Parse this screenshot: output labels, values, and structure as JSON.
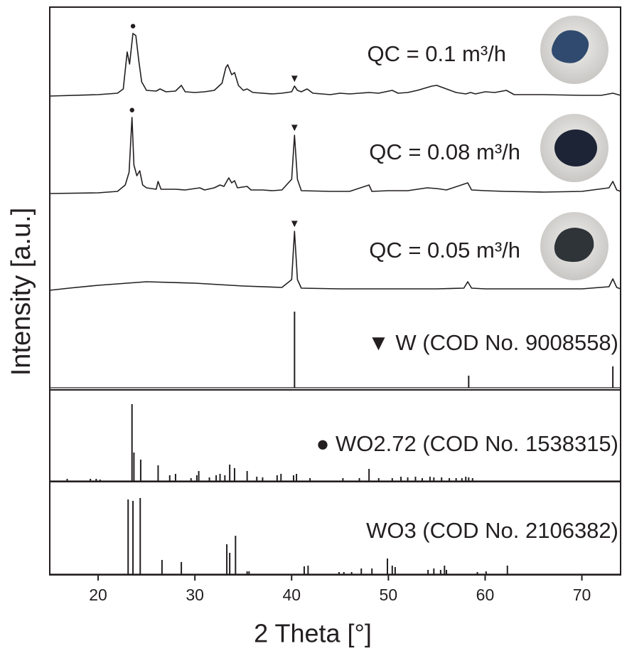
{
  "chart_data": [
    {
      "type": "line",
      "xlabel": "2 Theta [°]",
      "ylabel": "Intensity [a.u.]",
      "xlim": [
        15,
        74
      ],
      "xticks": [
        20,
        30,
        40,
        50,
        60,
        70
      ],
      "ylim": [
        0,
        110
      ],
      "series": [
        {
          "name": "QC = 0.1 m³/h",
          "color": "#231f20",
          "x": [
            15,
            20,
            22,
            22.6,
            23,
            23.25,
            23.6,
            23.9,
            24.2,
            24.5,
            25,
            26,
            26.4,
            27,
            28,
            28.6,
            29,
            30,
            31,
            32,
            32.8,
            33.2,
            33.4,
            33.8,
            34.1,
            34.5,
            35,
            35.4,
            36,
            38,
            39,
            40,
            40.3,
            40.6,
            41,
            41.6,
            42.2,
            44,
            45,
            46,
            48,
            49,
            50.4,
            51,
            52,
            53,
            54.5,
            55,
            56,
            57,
            58,
            58.5,
            59,
            60,
            61,
            62.2,
            63,
            66,
            70,
            72,
            73.2,
            74
          ],
          "values": [
            0,
            2,
            4,
            10,
            62,
            45,
            88,
            85,
            50,
            20,
            8,
            7,
            10,
            6,
            7,
            15,
            6,
            5,
            6,
            8,
            18,
            40,
            44,
            30,
            33,
            15,
            8,
            10,
            5,
            3,
            4,
            6,
            14,
            8,
            6,
            10,
            4,
            2,
            4,
            3,
            5,
            4,
            8,
            4,
            5,
            8,
            14,
            15,
            10,
            5,
            3,
            5,
            3,
            6,
            5,
            8,
            2,
            2,
            1,
            1,
            4,
            1
          ],
          "markers": [
            {
              "x": 23.6,
              "label": "●"
            },
            {
              "x": 40.3,
              "label": "▼"
            }
          ]
        },
        {
          "name": "QC = 0.08 m³/h",
          "color": "#231f20",
          "x": [
            15,
            20,
            22,
            22.8,
            23.2,
            23.5,
            23.7,
            24,
            24.3,
            24.6,
            25,
            26,
            26.2,
            26.5,
            28,
            29,
            30.5,
            31,
            32,
            32.6,
            33,
            33.5,
            33.8,
            34.1,
            34.4,
            35.4,
            35.8,
            37,
            38,
            39,
            40,
            40.3,
            40.6,
            41,
            44,
            46,
            48,
            48.3,
            50,
            52,
            54,
            55,
            56,
            58.2,
            58.6,
            60,
            62,
            66,
            70,
            72.8,
            73.2,
            73.6,
            74
          ],
          "values": [
            0,
            1,
            3,
            12,
            30,
            107,
            40,
            25,
            32,
            12,
            8,
            6,
            17,
            6,
            6,
            5,
            8,
            5,
            8,
            12,
            10,
            22,
            15,
            18,
            8,
            10,
            5,
            5,
            4,
            5,
            20,
            82,
            20,
            4,
            3,
            3,
            12,
            3,
            4,
            4,
            8,
            7,
            5,
            15,
            5,
            4,
            3,
            2,
            3,
            8,
            17,
            5,
            3
          ],
          "markers": [
            {
              "x": 23.5,
              "label": "●"
            },
            {
              "x": 40.3,
              "label": "▼"
            }
          ]
        },
        {
          "name": "QC = 0.05 m³/h",
          "color": "#231f20",
          "x": [
            15,
            17,
            20,
            25,
            30,
            35,
            39,
            40,
            40.3,
            40.6,
            41,
            45,
            50,
            55,
            57.8,
            58.2,
            58.6,
            60,
            70,
            72.8,
            73.2,
            73.6,
            74
          ],
          "values": [
            0,
            3,
            7,
            12,
            10,
            6,
            4,
            15,
            83,
            15,
            3,
            2,
            2,
            2,
            3,
            12,
            3,
            2,
            2,
            5,
            16,
            4,
            2
          ],
          "markers": [
            {
              "x": 40.3,
              "label": "▼"
            }
          ]
        }
      ]
    },
    {
      "type": "stem",
      "xlim": [
        15,
        74
      ],
      "ylim": [
        0,
        110
      ],
      "series": [
        {
          "name": "▼ W (COD No. 9008558)",
          "color": "#231f20",
          "x": [
            40.3,
            58.3,
            73.2
          ],
          "values": [
            107,
            17,
            30
          ]
        }
      ]
    },
    {
      "type": "stem",
      "xlim": [
        15,
        74
      ],
      "ylim": [
        0,
        110
      ],
      "series": [
        {
          "name": "● WO2.72 (COD No. 1538315)",
          "color": "#231f20",
          "x": [
            16.8,
            19.2,
            19.8,
            20.2,
            23.5,
            23.7,
            24.4,
            26.2,
            27.4,
            28,
            29.6,
            30.2,
            30.4,
            31.5,
            32.2,
            32.6,
            33.1,
            33.6,
            34.1,
            35.4,
            36.4,
            37,
            38.5,
            38.9,
            40.2,
            40.5,
            41.9,
            45.3,
            47,
            48,
            49,
            50.4,
            51.3,
            52,
            52.8,
            53.5,
            54.3,
            54.7,
            55.5,
            56.3,
            57,
            57.6,
            58,
            58.3,
            58.7
          ],
          "values": [
            3,
            3,
            3,
            2,
            108,
            40,
            30,
            22,
            8,
            10,
            4,
            8,
            14,
            5,
            8,
            10,
            8,
            23,
            18,
            14,
            6,
            5,
            8,
            10,
            8,
            10,
            4,
            4,
            4,
            17,
            4,
            4,
            6,
            5,
            6,
            4,
            6,
            5,
            5,
            4,
            4,
            4,
            6,
            5,
            4
          ]
        }
      ]
    },
    {
      "type": "stem",
      "xlim": [
        15,
        74
      ],
      "ylim": [
        0,
        110
      ],
      "series": [
        {
          "name": "WO3 (COD No. 2106382)",
          "color": "#231f20",
          "x": [
            23.1,
            23.6,
            24.35,
            26.6,
            28.6,
            33.3,
            33.6,
            34.2,
            35.4,
            35.6,
            41.3,
            41.7,
            44.9,
            45.4,
            46.2,
            47.2,
            48.3,
            49.9,
            50.4,
            50.7,
            54.1,
            54.7,
            55.4,
            55.8,
            56,
            59.2,
            60.1,
            62.3
          ],
          "values": [
            105,
            103,
            107,
            20,
            17,
            42,
            30,
            54,
            4,
            4,
            11,
            12,
            3,
            3,
            3,
            8,
            8,
            22,
            12,
            10,
            6,
            8,
            6,
            12,
            6,
            3,
            4,
            12
          ]
        }
      ]
    }
  ]
}
